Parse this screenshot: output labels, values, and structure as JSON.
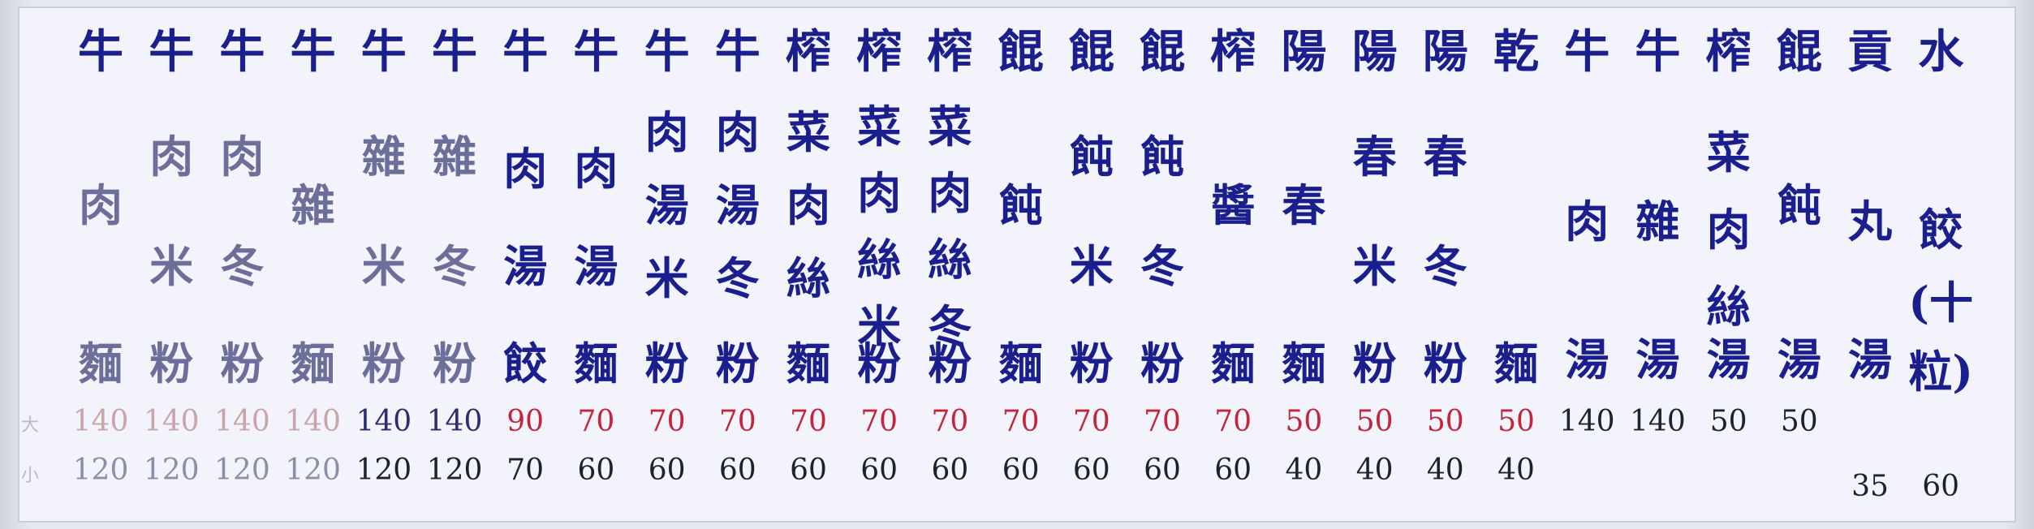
{
  "board": {
    "size_labels": {
      "large": "大",
      "small": "小"
    },
    "items": [
      {
        "title": "牛",
        "chars": [
          "肉"
        ],
        "word": "麵",
        "large": "140",
        "small": "120",
        "tone": "pale",
        "price_style": "pale"
      },
      {
        "title": "牛",
        "chars": [
          "肉",
          "米"
        ],
        "word": "粉",
        "large": "140",
        "small": "120",
        "tone": "pale",
        "price_style": "pale"
      },
      {
        "title": "牛",
        "chars": [
          "肉",
          "冬"
        ],
        "word": "粉",
        "large": "140",
        "small": "120",
        "tone": "pale",
        "price_style": "pale"
      },
      {
        "title": "牛",
        "chars": [
          "雜"
        ],
        "word": "麵",
        "large": "140",
        "small": "120",
        "tone": "pale",
        "price_style": "pale"
      },
      {
        "title": "牛",
        "chars": [
          "雜",
          "米"
        ],
        "word": "粉",
        "large": "140",
        "small": "120",
        "tone": "pale",
        "price_style": "navyp"
      },
      {
        "title": "牛",
        "chars": [
          "雜",
          "冬"
        ],
        "word": "粉",
        "large": "140",
        "small": "120",
        "tone": "pale",
        "price_style": "navyp"
      },
      {
        "title": "牛",
        "chars": [
          "肉",
          "湯"
        ],
        "word": "餃",
        "large": "90",
        "small": "70",
        "tone": "navy",
        "price_style": "red"
      },
      {
        "title": "牛",
        "chars": [
          "肉",
          "湯"
        ],
        "word": "麵",
        "large": "70",
        "small": "60",
        "tone": "navy",
        "price_style": "red"
      },
      {
        "title": "牛",
        "chars": [
          "肉",
          "湯",
          "米"
        ],
        "word": "粉",
        "large": "70",
        "small": "60",
        "tone": "navy",
        "price_style": "red"
      },
      {
        "title": "牛",
        "chars": [
          "肉",
          "湯",
          "冬"
        ],
        "word": "粉",
        "large": "70",
        "small": "60",
        "tone": "navy",
        "price_style": "red"
      },
      {
        "title": "榨",
        "chars": [
          "菜",
          "肉",
          "絲"
        ],
        "word": "麵",
        "large": "70",
        "small": "60",
        "tone": "navy",
        "price_style": "red"
      },
      {
        "title": "榨",
        "chars": [
          "菜",
          "肉",
          "絲",
          "米"
        ],
        "word": "粉",
        "large": "70",
        "small": "60",
        "tone": "navy",
        "price_style": "red"
      },
      {
        "title": "榨",
        "chars": [
          "菜",
          "肉",
          "絲",
          "冬"
        ],
        "word": "粉",
        "large": "70",
        "small": "60",
        "tone": "navy",
        "price_style": "red"
      },
      {
        "title": "餛",
        "chars": [
          "飩"
        ],
        "word": "麵",
        "large": "70",
        "small": "60",
        "tone": "navy",
        "price_style": "red"
      },
      {
        "title": "餛",
        "chars": [
          "飩",
          "米"
        ],
        "word": "粉",
        "large": "70",
        "small": "60",
        "tone": "navy",
        "price_style": "red"
      },
      {
        "title": "餛",
        "chars": [
          "飩",
          "冬"
        ],
        "word": "粉",
        "large": "70",
        "small": "60",
        "tone": "navy",
        "price_style": "red"
      },
      {
        "title": "榨",
        "chars": [
          "醬"
        ],
        "word": "麵",
        "large": "70",
        "small": "60",
        "tone": "navy",
        "price_style": "red"
      },
      {
        "title": "陽",
        "chars": [
          "春"
        ],
        "word": "麵",
        "large": "50",
        "small": "40",
        "tone": "navy",
        "price_style": "red"
      },
      {
        "title": "陽",
        "chars": [
          "春",
          "米"
        ],
        "word": "粉",
        "large": "50",
        "small": "40",
        "tone": "navy",
        "price_style": "red"
      },
      {
        "title": "陽",
        "chars": [
          "春",
          "冬"
        ],
        "word": "粉",
        "large": "50",
        "small": "40",
        "tone": "navy",
        "price_style": "red"
      },
      {
        "title": "乾",
        "chars": [],
        "word": "麵",
        "large": "50",
        "small": "40",
        "tone": "navy",
        "price_style": "red"
      },
      {
        "title": "牛",
        "chars": [
          "肉"
        ],
        "word": "湯",
        "large": "140",
        "small": "",
        "tone": "navy",
        "price_style": "dk"
      },
      {
        "title": "牛",
        "chars": [
          "雜"
        ],
        "word": "湯",
        "large": "140",
        "small": "",
        "tone": "navy",
        "price_style": "dk"
      },
      {
        "title": "榨",
        "chars": [
          "菜",
          "肉",
          "絲"
        ],
        "word": "湯",
        "large": "50",
        "small": "",
        "tone": "navy",
        "price_style": "dk"
      },
      {
        "title": "餛",
        "chars": [
          "飩"
        ],
        "word": "湯",
        "large": "50",
        "small": "",
        "tone": "navy",
        "price_style": "dk"
      },
      {
        "title": "貢",
        "chars": [
          "丸"
        ],
        "word": "湯",
        "large": "",
        "small": "35",
        "tone": "navy",
        "price_style": "dk"
      },
      {
        "title": "水",
        "chars": [
          "餃",
          "(十",
          "粒)"
        ],
        "word": "",
        "large": "",
        "small": "60",
        "tone": "navy",
        "price_style": "dk"
      }
    ]
  },
  "colors": {
    "board_bg": "#f3f4fb",
    "pale_text": "#6c6f99",
    "navy_text": "#1b1f8e",
    "red_price": "#c2253c",
    "dark_price": "#1d2230"
  }
}
